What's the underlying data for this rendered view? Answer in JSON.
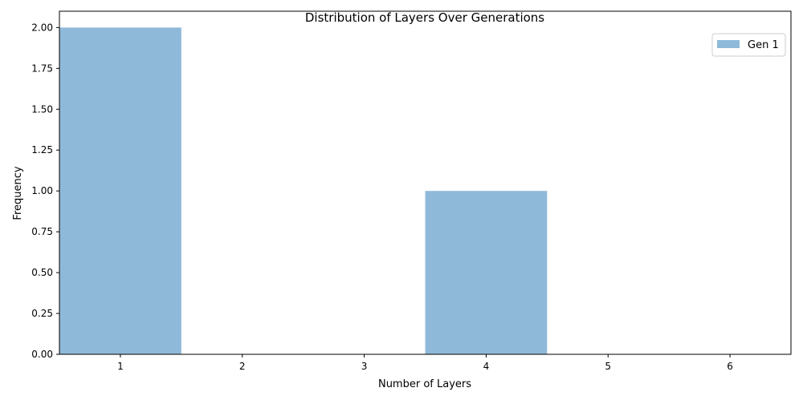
{
  "chart_data": {
    "type": "bar",
    "title": "Distribution of Layers Over Generations",
    "xlabel": "Number of Layers",
    "ylabel": "Frequency",
    "x_ticks": [
      "1",
      "2",
      "3",
      "4",
      "5",
      "6"
    ],
    "y_ticks": [
      "0.00",
      "0.25",
      "0.50",
      "0.75",
      "1.00",
      "1.25",
      "1.50",
      "1.75",
      "2.00"
    ],
    "xlim": [
      0.5,
      6.5
    ],
    "ylim": [
      0,
      2.1
    ],
    "grid": false,
    "legend_position": "top-right",
    "series": [
      {
        "name": "Gen 1",
        "color": "#8fb9d8",
        "bins": [
          {
            "start": 0.5,
            "end": 1.5,
            "value": 2
          },
          {
            "start": 1.5,
            "end": 2.5,
            "value": 0
          },
          {
            "start": 2.5,
            "end": 3.5,
            "value": 0
          },
          {
            "start": 3.5,
            "end": 4.5,
            "value": 1
          },
          {
            "start": 4.5,
            "end": 5.5,
            "value": 0
          },
          {
            "start": 5.5,
            "end": 6.5,
            "value": 0
          }
        ]
      }
    ]
  }
}
